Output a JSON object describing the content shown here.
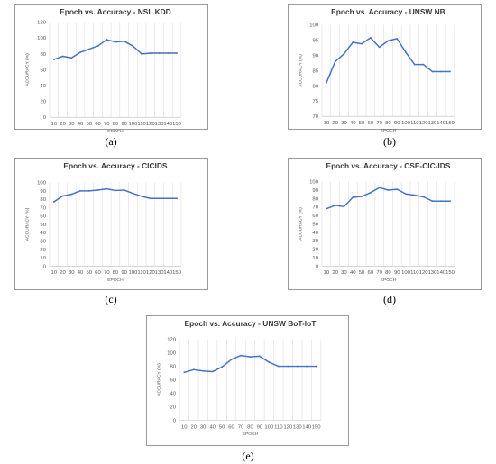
{
  "colors": {
    "line": "#4472c4"
  },
  "chart_data": [
    {
      "type": "line",
      "title": "Epoch vs. Accuracy - NSL KDD",
      "xlabel": "EPOCH",
      "ylabel": "ACCURACY (%)",
      "caption": "(a)",
      "x": [
        10,
        20,
        30,
        40,
        50,
        60,
        70,
        80,
        90,
        100,
        110,
        120,
        130,
        140,
        150
      ],
      "y": [
        73,
        77,
        75,
        82,
        86,
        90,
        98,
        95,
        96,
        90,
        80,
        81,
        81,
        81,
        81
      ],
      "ylim": [
        0,
        120
      ],
      "yticks": [
        0,
        20,
        40,
        60,
        80,
        100,
        120
      ],
      "grid": "vertical"
    },
    {
      "type": "line",
      "title": "Epoch vs. Accuracy - UNSW NB",
      "xlabel": "EPOCH",
      "ylabel": "ACCURACY (%)",
      "caption": "(b)",
      "x": [
        10,
        20,
        30,
        40,
        50,
        60,
        70,
        80,
        90,
        100,
        110,
        120,
        130,
        140,
        150
      ],
      "y": [
        81,
        88,
        90.5,
        94.3,
        93.8,
        95.8,
        92.7,
        94.8,
        95.5,
        91,
        87,
        87,
        84.7,
        84.7,
        84.7
      ],
      "ylim": [
        70,
        100
      ],
      "yticks": [
        70,
        75,
        80,
        85,
        90,
        95,
        100
      ],
      "grid": "vertical"
    },
    {
      "type": "line",
      "title": "Epoch vs. Accuracy - CICIDS",
      "xlabel": "EPOCH",
      "ylabel": "ACCURACY (%)",
      "caption": "(c)",
      "x": [
        10,
        20,
        30,
        40,
        50,
        60,
        70,
        80,
        90,
        100,
        110,
        120,
        130,
        140,
        150
      ],
      "y": [
        77,
        84,
        86,
        90,
        90,
        91,
        92.5,
        90.5,
        91,
        87,
        83.5,
        81,
        81,
        81,
        81
      ],
      "ylim": [
        0,
        100
      ],
      "yticks": [
        0,
        10,
        20,
        30,
        40,
        50,
        60,
        70,
        80,
        90,
        100
      ],
      "grid": "vertical"
    },
    {
      "type": "line",
      "title": "Epoch vs. Accuracy - CSE-CIC-IDS",
      "xlabel": "EPOCH",
      "ylabel": "ACCURACY (%)",
      "caption": "(d)",
      "x": [
        10,
        20,
        30,
        40,
        50,
        60,
        70,
        80,
        90,
        100,
        110,
        120,
        130,
        140,
        150
      ],
      "y": [
        68,
        72,
        70.5,
        81.5,
        82.5,
        87,
        93,
        90,
        91,
        85.5,
        84,
        82,
        77,
        77,
        77
      ],
      "ylim": [
        0,
        100
      ],
      "yticks": [
        0,
        10,
        20,
        30,
        40,
        50,
        60,
        70,
        80,
        90,
        100
      ],
      "grid": "vertical"
    },
    {
      "type": "line",
      "title": "Epoch vs. Accuracy - UNSW BoT-IoT",
      "xlabel": "EPOCH",
      "ylabel": "ACCURACY (%)",
      "caption": "(e)",
      "x": [
        10,
        20,
        30,
        40,
        50,
        60,
        70,
        80,
        90,
        100,
        110,
        120,
        130,
        140,
        150
      ],
      "y": [
        71,
        75,
        73,
        72,
        79,
        90,
        96,
        94,
        95,
        86,
        80,
        80,
        80,
        80,
        80
      ],
      "ylim": [
        0,
        120
      ],
      "yticks": [
        0,
        20,
        40,
        60,
        80,
        100,
        120
      ],
      "grid": "vertical"
    }
  ]
}
